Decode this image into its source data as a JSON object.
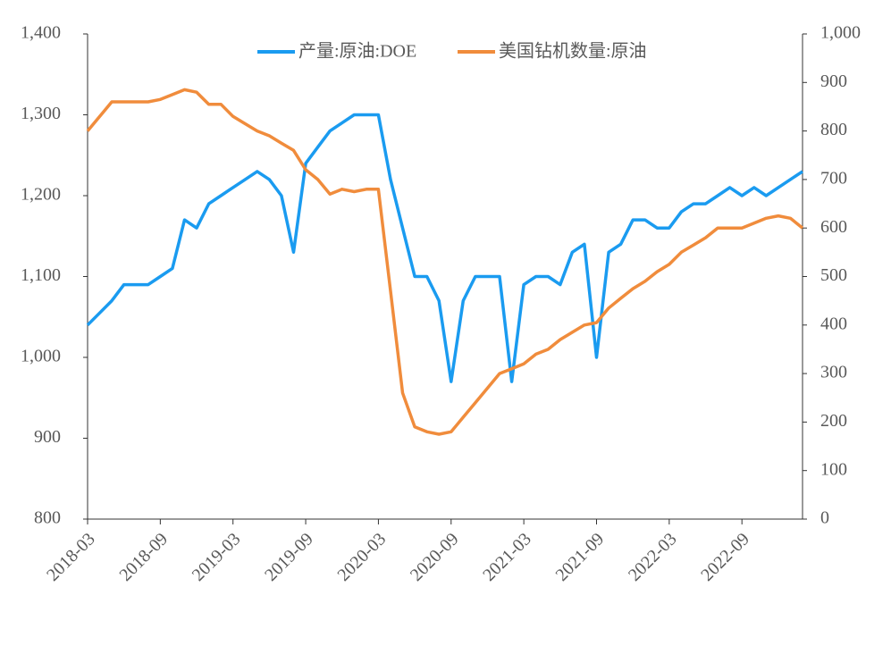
{
  "chart_data": {
    "type": "line",
    "x": [
      "2018-03",
      "2018-04",
      "2018-05",
      "2018-06",
      "2018-07",
      "2018-08",
      "2018-09",
      "2018-10",
      "2018-11",
      "2018-12",
      "2019-01",
      "2019-02",
      "2019-03",
      "2019-04",
      "2019-05",
      "2019-06",
      "2019-07",
      "2019-08",
      "2019-09",
      "2019-10",
      "2019-11",
      "2019-12",
      "2020-01",
      "2020-02",
      "2020-03",
      "2020-04",
      "2020-05",
      "2020-06",
      "2020-07",
      "2020-08",
      "2020-09",
      "2020-10",
      "2020-11",
      "2020-12",
      "2021-01",
      "2021-02",
      "2021-03",
      "2021-04",
      "2021-05",
      "2021-06",
      "2021-07",
      "2021-08",
      "2021-09",
      "2021-10",
      "2021-11",
      "2021-12",
      "2022-01",
      "2022-02",
      "2022-03",
      "2022-04",
      "2022-05",
      "2022-06",
      "2022-07",
      "2022-08",
      "2022-09",
      "2022-10",
      "2022-11",
      "2022-12",
      "2023-01",
      "2023-02"
    ],
    "xticks": [
      "2018-03",
      "2018-09",
      "2019-03",
      "2019-09",
      "2020-03",
      "2020-09",
      "2021-03",
      "2021-09",
      "2022-03",
      "2022-09"
    ],
    "series": [
      {
        "name": "产量:原油:DOE",
        "color": "#1a9bf0",
        "axis": "y",
        "values": [
          1040,
          1055,
          1070,
          1090,
          1090,
          1090,
          1100,
          1110,
          1170,
          1160,
          1190,
          1200,
          1210,
          1220,
          1230,
          1220,
          1200,
          1130,
          1240,
          1260,
          1280,
          1290,
          1300,
          1300,
          1300,
          1220,
          1160,
          1100,
          1100,
          1070,
          970,
          1070,
          1100,
          1100,
          1100,
          970,
          1090,
          1100,
          1100,
          1090,
          1130,
          1140,
          1000,
          1130,
          1140,
          1170,
          1170,
          1160,
          1160,
          1180,
          1190,
          1190,
          1200,
          1210,
          1200,
          1210,
          1200,
          1210,
          1220,
          1230
        ]
      },
      {
        "name": "美国钻机数量:原油",
        "color": "#f08c3c",
        "axis": "y2",
        "values": [
          800,
          830,
          860,
          860,
          860,
          860,
          865,
          875,
          885,
          880,
          855,
          855,
          830,
          815,
          800,
          790,
          775,
          760,
          720,
          700,
          670,
          680,
          675,
          680,
          680,
          470,
          260,
          190,
          180,
          175,
          180,
          210,
          240,
          270,
          300,
          310,
          320,
          340,
          350,
          370,
          385,
          400,
          405,
          435,
          455,
          475,
          490,
          510,
          525,
          550,
          565,
          580,
          600,
          600,
          600,
          610,
          620,
          625,
          620,
          600
        ]
      }
    ],
    "ylim": [
      800,
      1400
    ],
    "yticks": [
      800,
      900,
      {
        "value": 1000,
        "label": "1,000"
      },
      {
        "value": 1100,
        "label": "1,100"
      },
      {
        "value": 1200,
        "label": "1,200"
      },
      {
        "value": 1300,
        "label": "1,300"
      },
      {
        "value": 1400,
        "label": "1,400"
      }
    ],
    "y2lim": [
      0,
      1000
    ],
    "y2ticks": [
      0,
      100,
      200,
      300,
      400,
      500,
      600,
      700,
      800,
      900,
      {
        "value": 1000,
        "label": "1,000"
      }
    ],
    "legend": "top"
  }
}
